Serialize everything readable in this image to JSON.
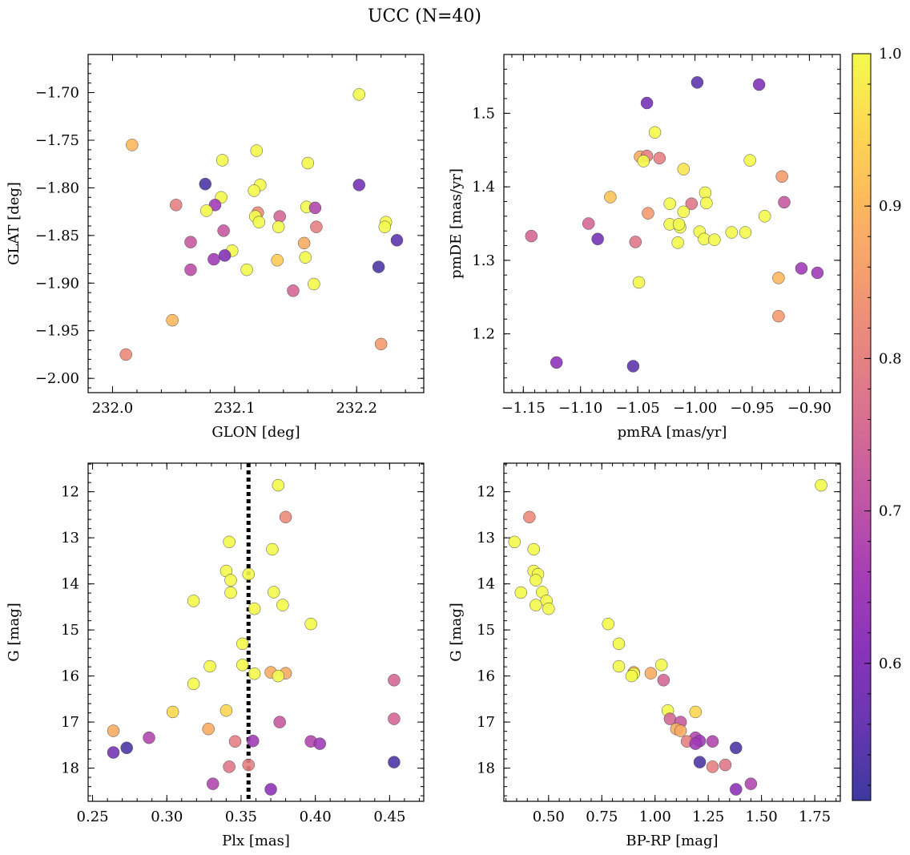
{
  "title": "UCC (N=40)",
  "colorbar": {
    "vmin": 0.51,
    "vmax": 1.0,
    "ticks": [
      0.6,
      0.7,
      0.8,
      0.9,
      1.0
    ],
    "tick_labels": [
      "0.6",
      "0.7",
      "0.8",
      "0.9",
      "1.0"
    ],
    "colormap": "plasma",
    "alpha": 0.8
  },
  "chart_data": [
    {
      "id": "glon-glat",
      "type": "scatter",
      "xlabel": "GLON [deg]",
      "ylabel": "GLAT [deg]",
      "xlim": [
        231.98,
        232.255
      ],
      "ylim": [
        -2.015,
        -1.66
      ],
      "invert_y": false,
      "xticks": [
        232.0,
        232.1,
        232.2
      ],
      "xtick_labels": [
        "232.0",
        "232.1",
        "232.2"
      ],
      "yticks": [
        -2.0,
        -1.95,
        -1.9,
        -1.85,
        -1.8,
        -1.75,
        -1.7
      ],
      "ytick_labels": [
        "−2.00",
        "−1.95",
        "−1.90",
        "−1.85",
        "−1.80",
        "−1.75",
        "−1.70"
      ],
      "points": [
        {
          "x": 232.202,
          "y": -1.702,
          "c": 1.0
        },
        {
          "x": 232.016,
          "y": -1.755,
          "c": 0.9
        },
        {
          "x": 232.118,
          "y": -1.761,
          "c": 1.0
        },
        {
          "x": 232.09,
          "y": -1.771,
          "c": 1.0
        },
        {
          "x": 232.16,
          "y": -1.774,
          "c": 1.0
        },
        {
          "x": 232.121,
          "y": -1.797,
          "c": 1.0
        },
        {
          "x": 232.076,
          "y": -1.796,
          "c": 0.53
        },
        {
          "x": 232.202,
          "y": -1.797,
          "c": 0.58
        },
        {
          "x": 232.116,
          "y": -1.803,
          "c": 1.0
        },
        {
          "x": 232.089,
          "y": -1.81,
          "c": 1.0
        },
        {
          "x": 232.052,
          "y": -1.818,
          "c": 0.8
        },
        {
          "x": 232.084,
          "y": -1.818,
          "c": 0.65
        },
        {
          "x": 232.159,
          "y": -1.82,
          "c": 1.0
        },
        {
          "x": 232.166,
          "y": -1.821,
          "c": 0.68
        },
        {
          "x": 232.077,
          "y": -1.824,
          "c": 1.0
        },
        {
          "x": 232.119,
          "y": -1.826,
          "c": 0.82
        },
        {
          "x": 232.137,
          "y": -1.83,
          "c": 0.75
        },
        {
          "x": 232.117,
          "y": -1.83,
          "c": 1.0
        },
        {
          "x": 232.12,
          "y": -1.836,
          "c": 1.0
        },
        {
          "x": 232.224,
          "y": -1.836,
          "c": 1.0
        },
        {
          "x": 232.136,
          "y": -1.841,
          "c": 1.0
        },
        {
          "x": 232.167,
          "y": -1.841,
          "c": 0.8
        },
        {
          "x": 232.223,
          "y": -1.841,
          "c": 1.0
        },
        {
          "x": 232.091,
          "y": -1.845,
          "c": 0.72
        },
        {
          "x": 232.233,
          "y": -1.855,
          "c": 0.55
        },
        {
          "x": 232.064,
          "y": -1.857,
          "c": 0.72
        },
        {
          "x": 232.157,
          "y": -1.858,
          "c": 0.88
        },
        {
          "x": 232.098,
          "y": -1.866,
          "c": 1.0
        },
        {
          "x": 232.092,
          "y": -1.871,
          "c": 0.6
        },
        {
          "x": 232.158,
          "y": -1.873,
          "c": 1.0
        },
        {
          "x": 232.083,
          "y": -1.875,
          "c": 0.65
        },
        {
          "x": 232.135,
          "y": -1.876,
          "c": 0.93
        },
        {
          "x": 232.218,
          "y": -1.883,
          "c": 0.53
        },
        {
          "x": 232.064,
          "y": -1.886,
          "c": 0.7
        },
        {
          "x": 232.11,
          "y": -1.886,
          "c": 1.0
        },
        {
          "x": 232.165,
          "y": -1.901,
          "c": 1.0
        },
        {
          "x": 232.148,
          "y": -1.908,
          "c": 0.75
        },
        {
          "x": 232.049,
          "y": -1.939,
          "c": 0.9
        },
        {
          "x": 232.22,
          "y": -1.964,
          "c": 0.85
        },
        {
          "x": 232.011,
          "y": -1.975,
          "c": 0.82
        }
      ]
    },
    {
      "id": "pmra-pmde",
      "type": "scatter",
      "xlabel": "pmRA [mas/yr]",
      "ylabel": "pmDE [mas/yr]",
      "xlim": [
        -1.167,
        -0.873
      ],
      "ylim": [
        1.12,
        1.58
      ],
      "invert_y": false,
      "xticks": [
        -1.15,
        -1.1,
        -1.05,
        -1.0,
        -0.95,
        -0.9
      ],
      "xtick_labels": [
        "−1.15",
        "−1.10",
        "−1.05",
        "−1.00",
        "−0.95",
        "−0.90"
      ],
      "yticks": [
        1.2,
        1.3,
        1.4,
        1.5
      ],
      "ytick_labels": [
        "1.2",
        "1.3",
        "1.4",
        "1.5"
      ],
      "points": [
        {
          "x": -0.998,
          "y": 1.542,
          "c": 0.55
        },
        {
          "x": -0.944,
          "y": 1.539,
          "c": 0.6
        },
        {
          "x": -1.042,
          "y": 1.514,
          "c": 0.58
        },
        {
          "x": -1.035,
          "y": 1.474,
          "c": 1.0
        },
        {
          "x": -1.048,
          "y": 1.441,
          "c": 0.88
        },
        {
          "x": -1.042,
          "y": 1.442,
          "c": 0.8
        },
        {
          "x": -1.031,
          "y": 1.439,
          "c": 0.8
        },
        {
          "x": -0.952,
          "y": 1.436,
          "c": 1.0
        },
        {
          "x": -1.045,
          "y": 1.435,
          "c": 1.0
        },
        {
          "x": -1.01,
          "y": 1.424,
          "c": 0.97
        },
        {
          "x": -0.924,
          "y": 1.414,
          "c": 0.85
        },
        {
          "x": -0.991,
          "y": 1.392,
          "c": 1.0
        },
        {
          "x": -1.074,
          "y": 1.386,
          "c": 0.92
        },
        {
          "x": -0.922,
          "y": 1.379,
          "c": 0.72
        },
        {
          "x": -0.99,
          "y": 1.378,
          "c": 1.0
        },
        {
          "x": -1.022,
          "y": 1.377,
          "c": 1.0
        },
        {
          "x": -1.003,
          "y": 1.377,
          "c": 0.78
        },
        {
          "x": -1.01,
          "y": 1.366,
          "c": 1.0
        },
        {
          "x": -1.041,
          "y": 1.364,
          "c": 0.85
        },
        {
          "x": -0.939,
          "y": 1.36,
          "c": 1.0
        },
        {
          "x": -1.093,
          "y": 1.35,
          "c": 0.75
        },
        {
          "x": -1.022,
          "y": 1.349,
          "c": 1.0
        },
        {
          "x": -1.013,
          "y": 1.345,
          "c": 1.0
        },
        {
          "x": -1.014,
          "y": 1.349,
          "c": 1.0
        },
        {
          "x": -0.996,
          "y": 1.339,
          "c": 1.0
        },
        {
          "x": -0.968,
          "y": 1.338,
          "c": 1.0
        },
        {
          "x": -0.956,
          "y": 1.338,
          "c": 1.0
        },
        {
          "x": -1.143,
          "y": 1.333,
          "c": 0.75
        },
        {
          "x": -0.992,
          "y": 1.329,
          "c": 1.0
        },
        {
          "x": -1.085,
          "y": 1.329,
          "c": 0.58
        },
        {
          "x": -0.983,
          "y": 1.328,
          "c": 1.0
        },
        {
          "x": -1.052,
          "y": 1.325,
          "c": 0.78
        },
        {
          "x": -1.015,
          "y": 1.324,
          "c": 1.0
        },
        {
          "x": -0.907,
          "y": 1.289,
          "c": 0.65
        },
        {
          "x": -0.893,
          "y": 1.283,
          "c": 0.65
        },
        {
          "x": -0.927,
          "y": 1.276,
          "c": 0.9
        },
        {
          "x": -1.049,
          "y": 1.27,
          "c": 1.0
        },
        {
          "x": -0.927,
          "y": 1.224,
          "c": 0.85
        },
        {
          "x": -1.121,
          "y": 1.161,
          "c": 0.62
        },
        {
          "x": -1.054,
          "y": 1.156,
          "c": 0.55
        }
      ]
    },
    {
      "id": "plx-g",
      "type": "scatter",
      "xlabel": "Plx [mas]",
      "ylabel": "G [mag]",
      "xlim": [
        0.247,
        0.473
      ],
      "ylim": [
        18.72,
        11.38
      ],
      "invert_y": true,
      "vline": 0.355,
      "xticks": [
        0.25,
        0.3,
        0.35,
        0.4,
        0.45
      ],
      "xtick_labels": [
        "0.25",
        "0.30",
        "0.35",
        "0.40",
        "0.45"
      ],
      "yticks": [
        12,
        13,
        14,
        15,
        16,
        17,
        18
      ],
      "ytick_labels": [
        "12",
        "13",
        "14",
        "15",
        "16",
        "17",
        "18"
      ],
      "points": [
        {
          "x": 0.375,
          "y": 11.86,
          "c": 1.0
        },
        {
          "x": 0.38,
          "y": 12.55,
          "c": 0.82
        },
        {
          "x": 0.342,
          "y": 13.09,
          "c": 1.0
        },
        {
          "x": 0.371,
          "y": 13.25,
          "c": 1.0
        },
        {
          "x": 0.34,
          "y": 13.72,
          "c": 1.0
        },
        {
          "x": 0.355,
          "y": 13.79,
          "c": 1.0
        },
        {
          "x": 0.343,
          "y": 13.92,
          "c": 1.0
        },
        {
          "x": 0.343,
          "y": 14.19,
          "c": 1.0
        },
        {
          "x": 0.372,
          "y": 14.18,
          "c": 1.0
        },
        {
          "x": 0.318,
          "y": 14.37,
          "c": 1.0
        },
        {
          "x": 0.378,
          "y": 14.46,
          "c": 1.0
        },
        {
          "x": 0.359,
          "y": 14.54,
          "c": 1.0
        },
        {
          "x": 0.397,
          "y": 14.87,
          "c": 1.0
        },
        {
          "x": 0.351,
          "y": 15.3,
          "c": 1.0
        },
        {
          "x": 0.329,
          "y": 15.79,
          "c": 1.0
        },
        {
          "x": 0.351,
          "y": 15.76,
          "c": 1.0
        },
        {
          "x": 0.37,
          "y": 15.92,
          "c": 0.88
        },
        {
          "x": 0.38,
          "y": 15.94,
          "c": 0.88
        },
        {
          "x": 0.359,
          "y": 15.95,
          "c": 1.0
        },
        {
          "x": 0.375,
          "y": 16.0,
          "c": 1.0
        },
        {
          "x": 0.453,
          "y": 16.09,
          "c": 0.75
        },
        {
          "x": 0.318,
          "y": 16.17,
          "c": 1.0
        },
        {
          "x": 0.304,
          "y": 16.78,
          "c": 0.95
        },
        {
          "x": 0.34,
          "y": 16.75,
          "c": 0.95
        },
        {
          "x": 0.453,
          "y": 16.93,
          "c": 0.75
        },
        {
          "x": 0.376,
          "y": 17.0,
          "c": 0.72
        },
        {
          "x": 0.328,
          "y": 17.15,
          "c": 0.88
        },
        {
          "x": 0.264,
          "y": 17.19,
          "c": 0.88
        },
        {
          "x": 0.288,
          "y": 17.34,
          "c": 0.68
        },
        {
          "x": 0.346,
          "y": 17.42,
          "c": 0.8
        },
        {
          "x": 0.358,
          "y": 17.41,
          "c": 0.65
        },
        {
          "x": 0.397,
          "y": 17.42,
          "c": 0.68
        },
        {
          "x": 0.403,
          "y": 17.47,
          "c": 0.65
        },
        {
          "x": 0.273,
          "y": 17.56,
          "c": 0.53
        },
        {
          "x": 0.264,
          "y": 17.66,
          "c": 0.58
        },
        {
          "x": 0.453,
          "y": 17.87,
          "c": 0.53
        },
        {
          "x": 0.342,
          "y": 17.97,
          "c": 0.78
        },
        {
          "x": 0.355,
          "y": 17.93,
          "c": 0.8
        },
        {
          "x": 0.331,
          "y": 18.34,
          "c": 0.68
        },
        {
          "x": 0.37,
          "y": 18.46,
          "c": 0.62
        }
      ]
    },
    {
      "id": "bprp-g",
      "type": "scatter",
      "xlabel": "BP-RP [mag]",
      "ylabel": "G [mag]",
      "xlim": [
        0.29,
        1.87
      ],
      "ylim": [
        18.72,
        11.38
      ],
      "invert_y": true,
      "xticks": [
        0.5,
        0.75,
        1.0,
        1.25,
        1.5,
        1.75
      ],
      "xtick_labels": [
        "0.50",
        "0.75",
        "1.00",
        "1.25",
        "1.50",
        "1.75"
      ],
      "yticks": [
        12,
        13,
        14,
        15,
        16,
        17,
        18
      ],
      "ytick_labels": [
        "12",
        "13",
        "14",
        "15",
        "16",
        "17",
        "18"
      ],
      "points": [
        {
          "x": 1.78,
          "y": 11.86,
          "c": 1.0
        },
        {
          "x": 0.41,
          "y": 12.55,
          "c": 0.82
        },
        {
          "x": 0.34,
          "y": 13.09,
          "c": 1.0
        },
        {
          "x": 0.43,
          "y": 13.25,
          "c": 1.0
        },
        {
          "x": 0.43,
          "y": 13.72,
          "c": 1.0
        },
        {
          "x": 0.45,
          "y": 13.79,
          "c": 1.0
        },
        {
          "x": 0.44,
          "y": 13.92,
          "c": 1.0
        },
        {
          "x": 0.37,
          "y": 14.19,
          "c": 1.0
        },
        {
          "x": 0.47,
          "y": 14.18,
          "c": 1.0
        },
        {
          "x": 0.49,
          "y": 14.37,
          "c": 1.0
        },
        {
          "x": 0.44,
          "y": 14.46,
          "c": 1.0
        },
        {
          "x": 0.5,
          "y": 14.54,
          "c": 1.0
        },
        {
          "x": 0.78,
          "y": 14.87,
          "c": 1.0
        },
        {
          "x": 0.83,
          "y": 15.3,
          "c": 1.0
        },
        {
          "x": 0.83,
          "y": 15.79,
          "c": 1.0
        },
        {
          "x": 1.03,
          "y": 15.76,
          "c": 1.0
        },
        {
          "x": 0.9,
          "y": 15.92,
          "c": 0.88
        },
        {
          "x": 0.98,
          "y": 15.94,
          "c": 0.88
        },
        {
          "x": 0.9,
          "y": 15.95,
          "c": 1.0
        },
        {
          "x": 0.89,
          "y": 16.0,
          "c": 1.0
        },
        {
          "x": 1.04,
          "y": 16.09,
          "c": 0.75
        },
        {
          "x": 1.06,
          "y": 16.75,
          "c": 1.0
        },
        {
          "x": 1.19,
          "y": 16.78,
          "c": 0.95
        },
        {
          "x": 1.07,
          "y": 16.93,
          "c": 0.75
        },
        {
          "x": 1.12,
          "y": 17.0,
          "c": 0.72
        },
        {
          "x": 1.1,
          "y": 17.15,
          "c": 0.88
        },
        {
          "x": 1.12,
          "y": 17.19,
          "c": 0.88
        },
        {
          "x": 1.19,
          "y": 17.34,
          "c": 0.68
        },
        {
          "x": 1.15,
          "y": 17.42,
          "c": 0.8
        },
        {
          "x": 1.21,
          "y": 17.41,
          "c": 0.65
        },
        {
          "x": 1.27,
          "y": 17.42,
          "c": 0.68
        },
        {
          "x": 1.19,
          "y": 17.47,
          "c": 0.65
        },
        {
          "x": 1.38,
          "y": 17.56,
          "c": 0.53
        },
        {
          "x": 1.21,
          "y": 17.87,
          "c": 0.53
        },
        {
          "x": 1.33,
          "y": 17.93,
          "c": 0.78
        },
        {
          "x": 1.27,
          "y": 17.97,
          "c": 0.8
        },
        {
          "x": 1.45,
          "y": 18.34,
          "c": 0.68
        },
        {
          "x": 1.38,
          "y": 18.46,
          "c": 0.62
        }
      ]
    }
  ]
}
